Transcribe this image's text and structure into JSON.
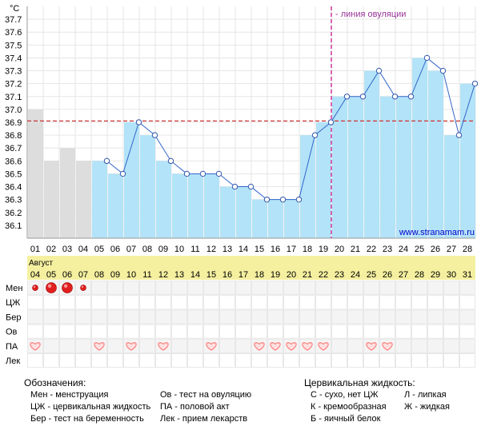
{
  "chart_data": {
    "type": "bar",
    "unit_label": "°C",
    "ovulation_label": "- линия овуляции",
    "site_label": "www.stranamam.ru",
    "cycle_days": [
      "01",
      "02",
      "03",
      "04",
      "05",
      "06",
      "07",
      "08",
      "09",
      "10",
      "11",
      "12",
      "13",
      "14",
      "15",
      "16",
      "17",
      "18",
      "19",
      "20",
      "21",
      "22",
      "23",
      "24",
      "25",
      "26",
      "27",
      "28"
    ],
    "month_label": "Август",
    "dates": [
      "04",
      "05",
      "06",
      "07",
      "08",
      "09",
      "10",
      "11",
      "12",
      "13",
      "14",
      "15",
      "16",
      "17",
      "18",
      "19",
      "20",
      "21",
      "22",
      "23",
      "24",
      "25",
      "26",
      "27",
      "28",
      "29",
      "30",
      "31"
    ],
    "temperatures": [
      37.0,
      36.6,
      36.7,
      36.6,
      36.6,
      36.5,
      36.9,
      36.8,
      36.6,
      36.5,
      36.5,
      36.5,
      36.4,
      36.4,
      36.3,
      36.3,
      36.3,
      36.8,
      36.9,
      37.1,
      37.1,
      37.3,
      37.1,
      37.1,
      37.4,
      37.3,
      36.8,
      37.2
    ],
    "line_start_day": 5,
    "y_ticks": [
      "37.7",
      "37.6",
      "37.5",
      "37.4",
      "37.3",
      "37.2",
      "37.1",
      "37.0",
      "36.9",
      "36.8",
      "36.7",
      "36.6",
      "36.5",
      "36.4",
      "36.3",
      "36.2",
      "36.1"
    ],
    "ylim": [
      36.0,
      37.8
    ],
    "coverline": 36.91,
    "ovulation_day": 19,
    "colors": {
      "gray_bar": "#dddddd",
      "blue_bar": "#b3e3f8",
      "line": "#3366cc",
      "coverline": "#cc3333",
      "ovulation": "#cc3399",
      "date_band": "#f5f0a0",
      "menstruation": "#e02020",
      "heart": "#ff8080"
    },
    "rows": [
      {
        "label": "Мен",
        "name": "row-menstruation"
      },
      {
        "label": "ЦЖ",
        "name": "row-cervical-fluid"
      },
      {
        "label": "Бер",
        "name": "row-pregnancy-test"
      },
      {
        "label": "Ов",
        "name": "row-ovulation-test"
      },
      {
        "label": "ПА",
        "name": "row-intercourse"
      },
      {
        "label": "Лек",
        "name": "row-medication"
      }
    ],
    "menstruation": [
      {
        "day": 1,
        "size": "small"
      },
      {
        "day": 2,
        "size": "large"
      },
      {
        "day": 3,
        "size": "large"
      },
      {
        "day": 4,
        "size": "small"
      }
    ],
    "intercourse_days": [
      1,
      5,
      7,
      9,
      12,
      15,
      16,
      17,
      18,
      19,
      22,
      23
    ]
  },
  "legend": {
    "title": "Обозначения:",
    "items": [
      "Мен - менструация",
      "ЦЖ - цервикальная жидкость",
      "Бер - тест на беременность",
      "Ов - тест на овуляцию",
      "ПА - половой акт",
      "Лек - прием лекарств"
    ]
  },
  "cervical": {
    "title": "Цервикальная жидкость:",
    "items": [
      "С - сухо, нет ЦЖ",
      "К - кремообразная",
      "Б - яичный белок",
      "Л - липкая",
      "Ж - жидкая"
    ]
  }
}
